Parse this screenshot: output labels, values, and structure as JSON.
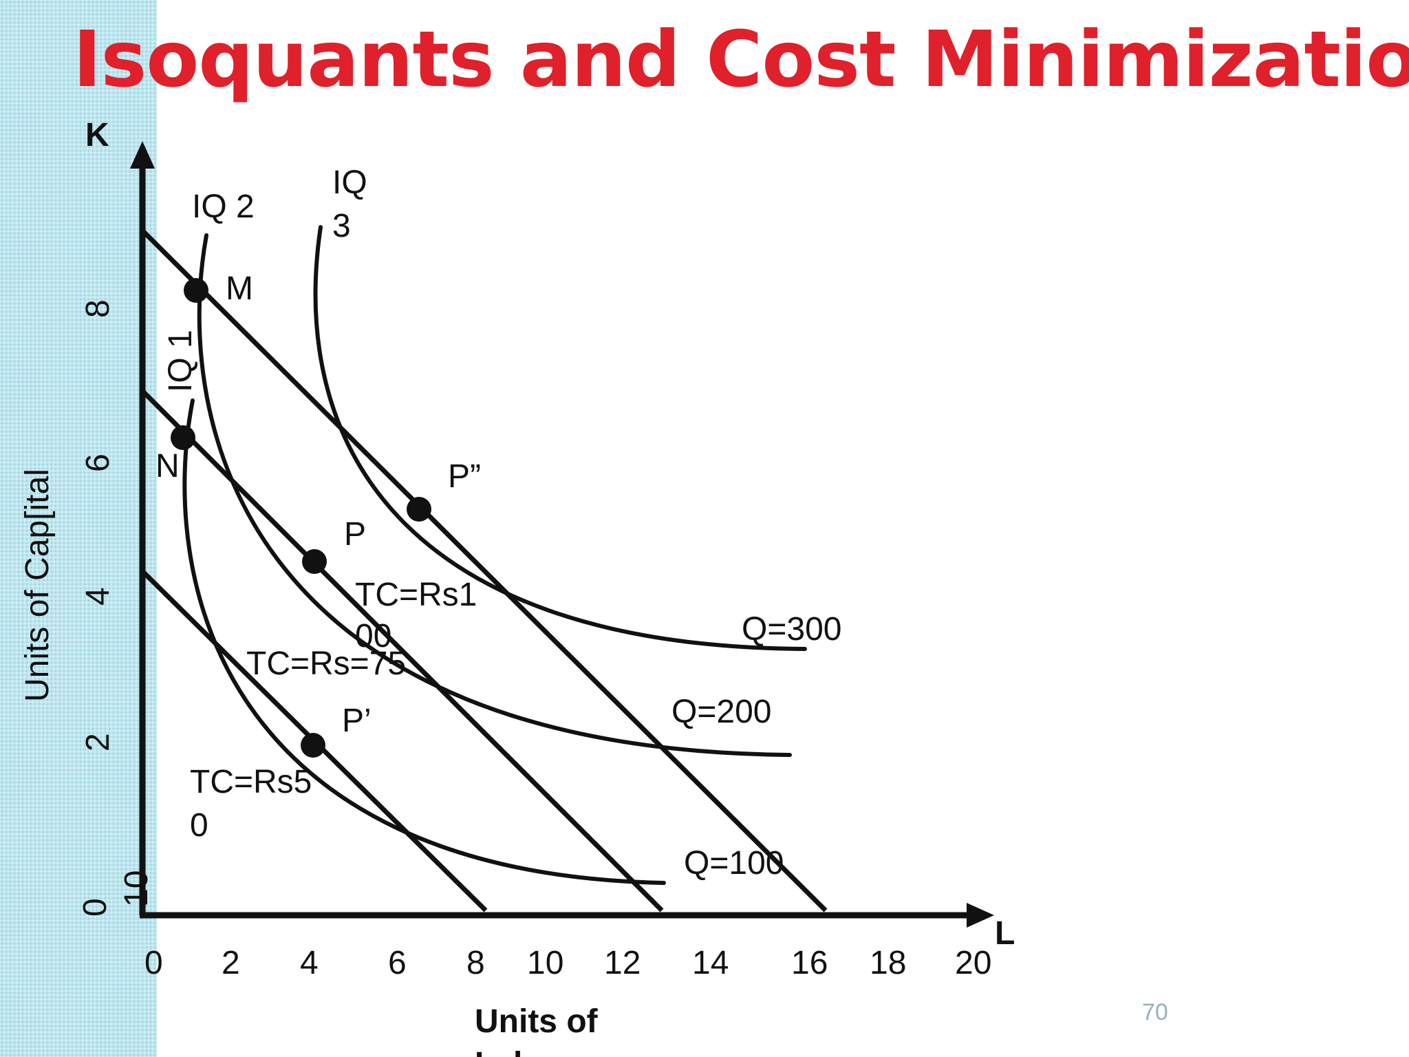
{
  "slide": {
    "title": "Isoquants and Cost Minimization",
    "page_number": "70"
  },
  "axes": {
    "y_symbol": "K",
    "x_symbol": "L",
    "y_title": "Units of  Cap[ital",
    "x_title_line1": "Units of",
    "x_title_line2": "Labour",
    "x_ticks": [
      "0",
      "2",
      "4",
      "6",
      "8",
      "10",
      "12",
      "14",
      "16",
      "18",
      "20"
    ],
    "y_ticks": [
      "0",
      "2",
      "4",
      "6",
      "8",
      "10"
    ]
  },
  "isoquant_names": {
    "iq1": "IQ 1",
    "iq2": "IQ 2",
    "iq3_line1": "IQ",
    "iq3_line2": "3"
  },
  "output_labels": {
    "q100": "Q=100",
    "q200": "Q=200",
    "q300": "Q=300"
  },
  "cost_labels": {
    "tc50_line1": "TC=Rs5",
    "tc50_line2": "0",
    "tc75": "TC=Rs=75",
    "tc100_line1": "TC=Rs1",
    "tc100_line2": "00"
  },
  "point_labels": {
    "m": "M",
    "n": "N",
    "p": "P",
    "p_prime": "P’",
    "p_double_prime": "P”"
  },
  "colors": {
    "title": "#e0202a",
    "lines": "#111111",
    "strip": "#bfe6ef"
  }
}
